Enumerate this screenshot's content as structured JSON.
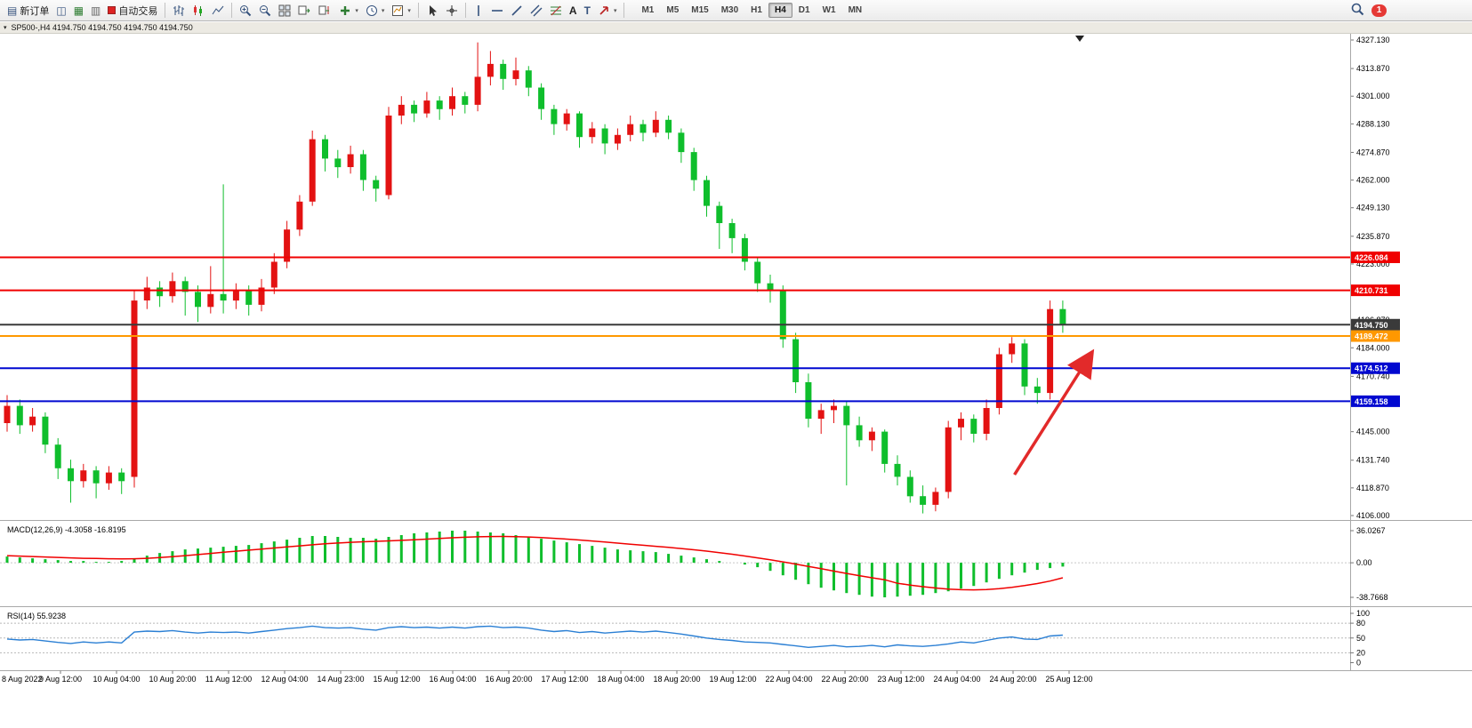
{
  "toolbar": {
    "new_order": "新订单",
    "autotrade": "自动交易",
    "timeframes": [
      "M1",
      "M5",
      "M15",
      "M30",
      "H1",
      "H4",
      "D1",
      "W1",
      "MN"
    ],
    "active_timeframe": "H4",
    "notification_count": "1",
    "icons": {
      "new_order": "▤",
      "navigator": "◫",
      "market_watch": "▦",
      "data_window": "▥",
      "text_tool": "A",
      "label_tool": "T",
      "caret": "▾",
      "window_menu": "▾"
    }
  },
  "chart": {
    "title": "SP500-,H4 4194.750 4194.750 4194.750 4194.750"
  },
  "chart_data": {
    "type": "candlestick",
    "symbol": "SP500-",
    "timeframe": "H4",
    "main": {
      "type": "candlestick",
      "up_color": "#e31212",
      "down_color": "#0fbe2c",
      "ylim": [
        4106.0,
        4327.13
      ],
      "price_ticks": [
        "4327.130",
        "4313.870",
        "4301.000",
        "4288.130",
        "4274.870",
        "4262.000",
        "4249.130",
        "4235.870",
        "4223.000",
        "4210.000",
        "4196.870",
        "4184.000",
        "4170.740",
        "4157.870",
        "4145.000",
        "4131.740",
        "4118.870",
        "4106.000"
      ],
      "hlines": [
        {
          "price": 4226.084,
          "label": "4226.084",
          "color": "#f00000"
        },
        {
          "price": 4210.731,
          "label": "4210.731",
          "color": "#f00000"
        },
        {
          "price": 4194.75,
          "label": "4194.750",
          "color": "#3a3a3a"
        },
        {
          "price": 4189.472,
          "label": "4189.472",
          "color": "#ff9800"
        },
        {
          "price": 4174.512,
          "label": "4174.512",
          "color": "#0008d0"
        },
        {
          "price": 4159.158,
          "label": "4159.158",
          "color": "#0008d0"
        }
      ],
      "arrow": {
        "from": [
          79.2,
          4125
        ],
        "to": [
          85.2,
          4181
        ],
        "color": "#e22a2a"
      },
      "ohlc": [
        [
          4149,
          4162,
          4145,
          4157
        ],
        [
          4157,
          4160,
          4144,
          4148
        ],
        [
          4148,
          4156,
          4145,
          4152
        ],
        [
          4152,
          4154,
          4135,
          4139
        ],
        [
          4139,
          4142,
          4123,
          4128
        ],
        [
          4128,
          4132,
          4112,
          4122
        ],
        [
          4122,
          4130,
          4119,
          4127
        ],
        [
          4127,
          4129,
          4114,
          4121
        ],
        [
          4121,
          4129,
          4118,
          4126
        ],
        [
          4126,
          4128,
          4116,
          4122
        ],
        [
          4124,
          4211,
          4119,
          4206
        ],
        [
          4206,
          4217,
          4202,
          4212
        ],
        [
          4212,
          4215,
          4203,
          4208
        ],
        [
          4208,
          4219,
          4205,
          4215
        ],
        [
          4215,
          4217,
          4199,
          4210
        ],
        [
          4210,
          4213,
          4196,
          4203
        ],
        [
          4203,
          4222,
          4200,
          4209
        ],
        [
          4209,
          4260,
          4200,
          4206
        ],
        [
          4206,
          4214,
          4202,
          4211
        ],
        [
          4211,
          4213,
          4199,
          4204
        ],
        [
          4204,
          4216,
          4201,
          4212
        ],
        [
          4212,
          4228,
          4209,
          4224
        ],
        [
          4224,
          4243,
          4221,
          4239
        ],
        [
          4239,
          4255,
          4236,
          4252
        ],
        [
          4252,
          4285,
          4250,
          4281
        ],
        [
          4281,
          4283,
          4266,
          4272
        ],
        [
          4272,
          4276,
          4263,
          4268
        ],
        [
          4268,
          4278,
          4265,
          4274
        ],
        [
          4274,
          4276,
          4257,
          4262
        ],
        [
          4262,
          4264,
          4252,
          4258
        ],
        [
          4255,
          4296,
          4253,
          4292
        ],
        [
          4292,
          4301,
          4288,
          4297
        ],
        [
          4297,
          4299,
          4289,
          4293
        ],
        [
          4293,
          4303,
          4291,
          4299
        ],
        [
          4299,
          4301,
          4290,
          4295
        ],
        [
          4295,
          4305,
          4292,
          4301
        ],
        [
          4301,
          4303,
          4293,
          4297
        ],
        [
          4297,
          4326,
          4294,
          4310
        ],
        [
          4310,
          4322,
          4306,
          4316
        ],
        [
          4316,
          4318,
          4304,
          4309
        ],
        [
          4309,
          4319,
          4306,
          4313
        ],
        [
          4313,
          4315,
          4301,
          4305
        ],
        [
          4305,
          4307,
          4290,
          4295
        ],
        [
          4295,
          4297,
          4283,
          4288
        ],
        [
          4288,
          4295,
          4285,
          4293
        ],
        [
          4293,
          4294,
          4277,
          4282
        ],
        [
          4282,
          4289,
          4279,
          4286
        ],
        [
          4286,
          4288,
          4274,
          4279
        ],
        [
          4279,
          4286,
          4276,
          4283
        ],
        [
          4283,
          4292,
          4280,
          4288
        ],
        [
          4288,
          4290,
          4280,
          4284
        ],
        [
          4284,
          4294,
          4282,
          4290
        ],
        [
          4290,
          4292,
          4281,
          4284
        ],
        [
          4284,
          4286,
          4270,
          4275
        ],
        [
          4275,
          4277,
          4257,
          4262
        ],
        [
          4262,
          4264,
          4245,
          4250
        ],
        [
          4250,
          4252,
          4230,
          4242
        ],
        [
          4242,
          4244,
          4228,
          4235
        ],
        [
          4235,
          4237,
          4220,
          4224
        ],
        [
          4224,
          4226,
          4210,
          4214
        ],
        [
          4214,
          4218,
          4205,
          4211
        ],
        [
          4211,
          4213,
          4184,
          4188
        ],
        [
          4188,
          4191,
          4163,
          4168
        ],
        [
          4168,
          4172,
          4147,
          4151
        ],
        [
          4151,
          4158,
          4144,
          4155
        ],
        [
          4155,
          4160,
          4149,
          4157
        ],
        [
          4157,
          4159,
          4120,
          4148
        ],
        [
          4148,
          4152,
          4138,
          4141
        ],
        [
          4141,
          4147,
          4136,
          4145
        ],
        [
          4145,
          4146,
          4126,
          4130
        ],
        [
          4130,
          4134,
          4120,
          4124
        ],
        [
          4124,
          4127,
          4112,
          4115
        ],
        [
          4115,
          4120,
          4107,
          4111
        ],
        [
          4111,
          4119,
          4108,
          4117
        ],
        [
          4117,
          4150,
          4114,
          4147
        ],
        [
          4147,
          4154,
          4141,
          4151
        ],
        [
          4151,
          4153,
          4140,
          4144
        ],
        [
          4144,
          4160,
          4141,
          4156
        ],
        [
          4156,
          4184,
          4153,
          4181
        ],
        [
          4181,
          4189,
          4177,
          4186
        ],
        [
          4186,
          4188,
          4162,
          4166
        ],
        [
          4166,
          4170,
          4158,
          4163
        ],
        [
          4163,
          4206,
          4160,
          4202
        ],
        [
          4202,
          4206,
          4191,
          4194.75
        ]
      ]
    },
    "macd": {
      "label": "MACD(12,26,9) -4.3058 -16.8195",
      "ticks": [
        "36.0267",
        "0.00",
        "-38.7668"
      ],
      "ylim": [
        -38.7668,
        36.0267
      ],
      "hist_color": "#0fbe2c",
      "signal_color": "#f00000",
      "histogram": [
        7,
        6,
        5,
        4,
        3,
        2,
        2,
        1,
        1,
        2,
        5,
        8,
        11,
        13,
        15,
        16,
        17,
        18,
        19,
        20,
        22,
        24,
        26,
        28,
        30,
        30,
        29,
        28,
        28,
        27,
        29,
        31,
        33,
        34,
        35,
        36,
        36,
        35,
        34,
        33,
        31,
        29,
        27,
        25,
        23,
        21,
        19,
        17,
        15,
        14,
        13,
        12,
        10,
        8,
        6,
        4,
        2,
        0,
        -2,
        -5,
        -9,
        -14,
        -19,
        -24,
        -28,
        -31,
        -34,
        -36,
        -38,
        -38.8,
        -38,
        -37,
        -36,
        -34,
        -32,
        -29,
        -26,
        -22,
        -18,
        -14,
        -11,
        -8,
        -6,
        -4.3
      ],
      "signal": [
        8,
        7.5,
        7,
        6.5,
        6,
        5.5,
        5,
        4.8,
        4.5,
        4.3,
        4.5,
        5,
        5.8,
        6.8,
        8,
        9.2,
        10.5,
        11.8,
        13,
        14.2,
        15.4,
        16.6,
        17.8,
        19,
        20.2,
        21.3,
        22.2,
        23,
        23.6,
        24.1,
        24.6,
        25.2,
        25.9,
        26.6,
        27.3,
        28,
        28.6,
        29.1,
        29.4,
        29.5,
        29.3,
        28.9,
        28.3,
        27.5,
        26.6,
        25.6,
        24.5,
        23.3,
        22.1,
        20.9,
        19.7,
        18.5,
        17.3,
        16,
        14.6,
        13.1,
        11.4,
        9.6,
        7.6,
        5.5,
        3.3,
        1,
        -1.5,
        -4.1,
        -6.7,
        -9.3,
        -11.9,
        -14.4,
        -16.8,
        -19,
        -23,
        -25,
        -26.8,
        -28.3,
        -29.5,
        -30.2,
        -30.4,
        -30,
        -29,
        -27.5,
        -25.6,
        -23.3,
        -20.5,
        -16.8
      ]
    },
    "rsi": {
      "label": "RSI(14) 55.9238",
      "ticks": [
        "100",
        "80",
        "50",
        "20",
        "0"
      ],
      "levels": [
        80,
        50,
        20
      ],
      "color": "#2a7fd4",
      "values": [
        48,
        46,
        47,
        44,
        41,
        39,
        42,
        40,
        42,
        40,
        62,
        64,
        63,
        65,
        62,
        60,
        62,
        61,
        62,
        60,
        63,
        66,
        69,
        71,
        74,
        71,
        70,
        71,
        68,
        66,
        71,
        73,
        71,
        72,
        70,
        72,
        70,
        73,
        74,
        71,
        72,
        70,
        66,
        63,
        65,
        61,
        63,
        60,
        62,
        64,
        62,
        64,
        61,
        58,
        54,
        50,
        47,
        45,
        42,
        41,
        40,
        37,
        34,
        31,
        33,
        35,
        32,
        33,
        35,
        32,
        36,
        34,
        33,
        35,
        38,
        42,
        40,
        45,
        50,
        52,
        48,
        47,
        54,
        55.9
      ]
    },
    "time_labels": [
      "8 Aug 2022",
      "9 Aug 12:00",
      "10 Aug 04:00",
      "10 Aug 20:00",
      "11 Aug 12:00",
      "12 Aug 04:00",
      "14 Aug 23:00",
      "15 Aug 12:00",
      "16 Aug 04:00",
      "16 Aug 20:00",
      "17 Aug 12:00",
      "18 Aug 04:00",
      "18 Aug 20:00",
      "19 Aug 12:00",
      "22 Aug 04:00",
      "22 Aug 20:00",
      "23 Aug 12:00",
      "24 Aug 04:00",
      "24 Aug 20:00",
      "25 Aug 12:00"
    ]
  }
}
